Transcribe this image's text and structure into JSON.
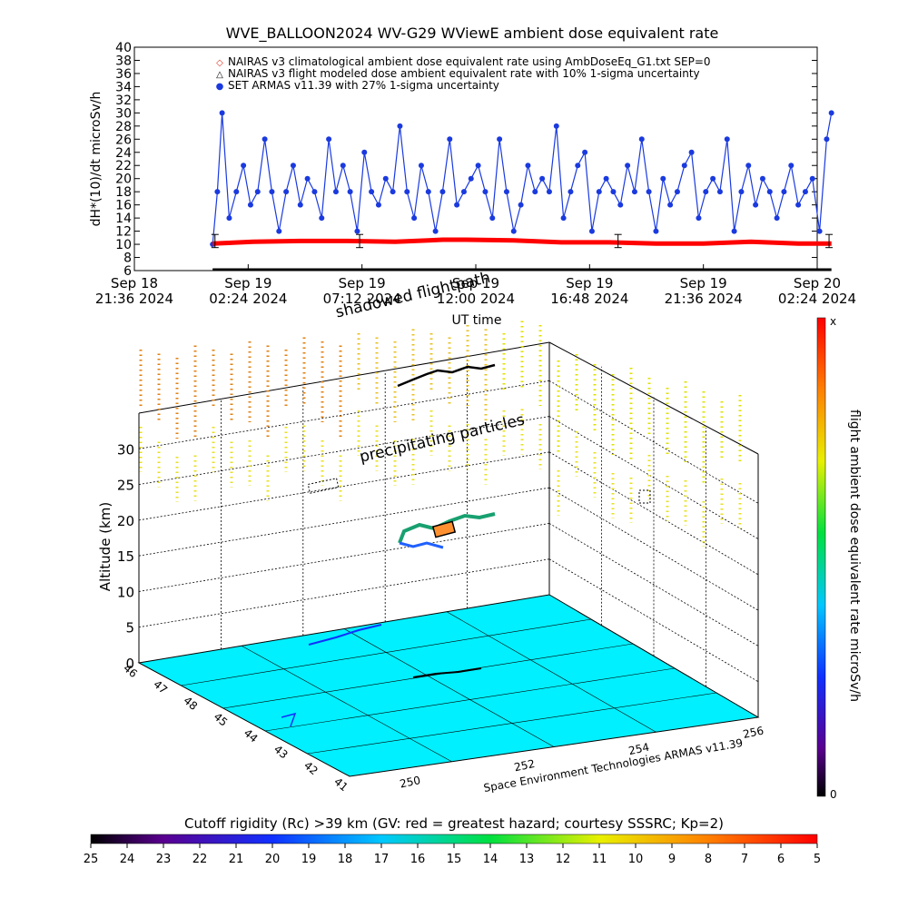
{
  "chart_data": [
    {
      "type": "line",
      "title": "WVE_BALLOON2024 WV-G29 WViewE ambient dose equivalent rate",
      "ylabel": "dH*(10)/dt microSv/h",
      "xlabel": "UT time",
      "ylim": [
        6,
        40
      ],
      "yticks": [
        6,
        8,
        10,
        12,
        14,
        16,
        18,
        20,
        22,
        24,
        26,
        28,
        30,
        32,
        34,
        36,
        38,
        40
      ],
      "x_ticks": [
        {
          "date": "Sep 18",
          "time": "21:36 2024"
        },
        {
          "date": "Sep 19",
          "time": "02:24 2024"
        },
        {
          "date": "Sep 19",
          "time": "07:12 2024"
        },
        {
          "date": "Sep 19",
          "time": "12:00 2024"
        },
        {
          "date": "Sep 19",
          "time": "16:48 2024"
        },
        {
          "date": "Sep 19",
          "time": "21:36 2024"
        },
        {
          "date": "Sep 20",
          "time": "02:24 2024"
        }
      ],
      "legend_placement": "top",
      "legend": [
        {
          "marker": "◇",
          "text": "NAIRAS v3 climatological ambient dose equivalent rate using AmbDoseEq_G1.txt SEP=0",
          "color": "#e03020"
        },
        {
          "marker": "△",
          "text": "NAIRAS v3 flight modeled dose ambient equivalent rate with 10% 1-sigma uncertainty",
          "color": "#000000"
        },
        {
          "marker": "●",
          "text": "SET ARMAS v11.39 with 27% 1-sigma uncertainty",
          "color": "#1a3adf"
        }
      ],
      "series": [
        {
          "name": "SET ARMAS v11.39",
          "color": "#1a3adf",
          "x_hours_since_sep18_2136": [
            3.3,
            3.5,
            3.7,
            4,
            4.3,
            4.6,
            4.9,
            5.2,
            5.5,
            5.8,
            6.1,
            6.4,
            6.7,
            7,
            7.3,
            7.6,
            7.9,
            8.2,
            8.5,
            8.8,
            9.1,
            9.4,
            9.7,
            10,
            10.3,
            10.6,
            10.9,
            11.2,
            11.5,
            11.8,
            12.1,
            12.4,
            12.7,
            13,
            13.3,
            13.6,
            13.9,
            14.2,
            14.5,
            14.8,
            15.1,
            15.4,
            15.7,
            16,
            16.3,
            16.6,
            16.9,
            17.2,
            17.5,
            17.8,
            18.1,
            18.4,
            18.7,
            19,
            19.3,
            19.6,
            19.9,
            20.2,
            20.5,
            20.8,
            21.1,
            21.4,
            21.7,
            22,
            22.3,
            22.6,
            22.9,
            23.2,
            23.5,
            23.8,
            24.1,
            24.4,
            24.7,
            25,
            25.3,
            25.6,
            25.9,
            26.2,
            26.5,
            26.8,
            27.1,
            27.4,
            27.7,
            28,
            28.3,
            28.6,
            28.9,
            29.2,
            29.4
          ],
          "values": [
            10,
            18,
            30,
            14,
            18,
            22,
            16,
            18,
            26,
            18,
            12,
            18,
            22,
            16,
            20,
            18,
            14,
            26,
            18,
            22,
            18,
            12,
            24,
            18,
            16,
            20,
            18,
            28,
            18,
            14,
            22,
            18,
            12,
            18,
            26,
            16,
            18,
            20,
            22,
            18,
            14,
            26,
            18,
            12,
            16,
            22,
            18,
            20,
            18,
            28,
            14,
            18,
            22,
            24,
            12,
            18,
            20,
            18,
            16,
            22,
            18,
            26,
            18,
            12,
            20,
            16,
            18,
            22,
            24,
            14,
            18,
            20,
            18,
            26,
            12,
            18,
            22,
            16,
            20,
            18,
            14,
            18,
            22,
            16,
            18,
            20,
            12,
            26,
            30
          ]
        },
        {
          "name": "NAIRAS v3 flight modeled",
          "color": "#ff0000",
          "x_hours_since_sep18_2136": [
            3.3,
            5,
            7,
            9,
            11,
            12.4,
            13,
            14,
            16,
            18,
            20,
            22,
            24,
            26,
            28,
            29.4
          ],
          "values": [
            10.1,
            10.4,
            10.5,
            10.5,
            10.4,
            10.6,
            10.7,
            10.7,
            10.6,
            10.3,
            10.3,
            10.1,
            10.1,
            10.4,
            10.1,
            10.1
          ]
        }
      ]
    },
    {
      "type": "scatter",
      "subtype": "3d-flight-track",
      "zlabel": "Altitude (km)",
      "zticks": [
        0,
        5,
        10,
        15,
        20,
        25,
        30
      ],
      "lat_ticks": [
        46,
        47,
        48,
        45,
        44,
        43,
        42,
        41
      ],
      "lon_ticks": [
        250,
        252,
        254,
        256
      ],
      "annotations": [
        "shadowed flightpath",
        "precipitating particles",
        "Space Environment Technologies ARMAS v11.39"
      ],
      "colorbar_right": {
        "label": "flight ambient dose equivalent rate microSv/h",
        "top": "x",
        "bottom": "0"
      },
      "colorbar_bottom": {
        "label": "Cutoff rigidity (Rc) >39 km (GV: red = greatest hazard; courtesy SSSRC; Kp=2)",
        "ticks": [
          25,
          24,
          23,
          22,
          21,
          20,
          19,
          18,
          17,
          16,
          15,
          14,
          13,
          12,
          11,
          10,
          9,
          8,
          7,
          6,
          5
        ]
      }
    }
  ]
}
